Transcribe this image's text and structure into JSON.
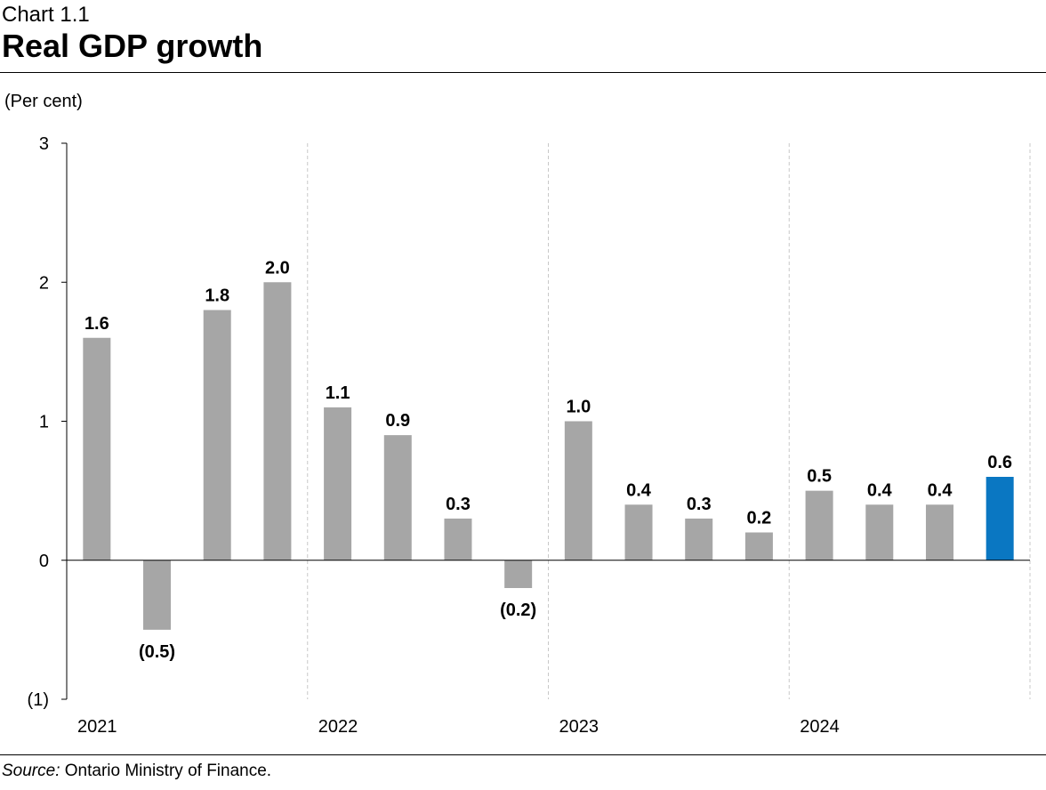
{
  "header": {
    "chart_number": "Chart 1.1",
    "title": "Real GDP growth"
  },
  "unit_label": "(Per cent)",
  "source": {
    "label": "Source:",
    "text": " Ontario Ministry of Finance."
  },
  "colors": {
    "bar": "#a6a6a6",
    "highlight_bar": "#0a77c2",
    "axis": "#000000",
    "gridline": "#c8c8c8"
  },
  "chart_data": {
    "type": "bar",
    "title": "Real GDP growth",
    "ylabel": "(Per cent)",
    "xlabel": "",
    "ylim": [
      -1,
      3
    ],
    "yticks": [
      -1,
      0,
      1,
      2,
      3
    ],
    "ytick_labels": [
      "(1)",
      "0",
      "1",
      "2",
      "3"
    ],
    "grid": false,
    "year_groups": [
      "2021",
      "2022",
      "2023",
      "2024"
    ],
    "categories": [
      "2021Q1",
      "2021Q2",
      "2021Q3",
      "2021Q4",
      "2022Q1",
      "2022Q2",
      "2022Q3",
      "2022Q4",
      "2023Q1",
      "2023Q2",
      "2023Q3",
      "2023Q4",
      "2024Q1",
      "2024Q2",
      "2024Q3",
      "2024Q4"
    ],
    "values": [
      1.6,
      -0.5,
      1.8,
      2.0,
      1.1,
      0.9,
      0.3,
      -0.2,
      1.0,
      0.4,
      0.3,
      0.2,
      0.5,
      0.4,
      0.4,
      0.6
    ],
    "value_labels": [
      "1.6",
      "(0.5)",
      "1.8",
      "2.0",
      "1.1",
      "0.9",
      "0.3",
      "(0.2)",
      "1.0",
      "0.4",
      "0.3",
      "0.2",
      "0.5",
      "0.4",
      "0.4",
      "0.6"
    ],
    "highlight_index": 15
  }
}
